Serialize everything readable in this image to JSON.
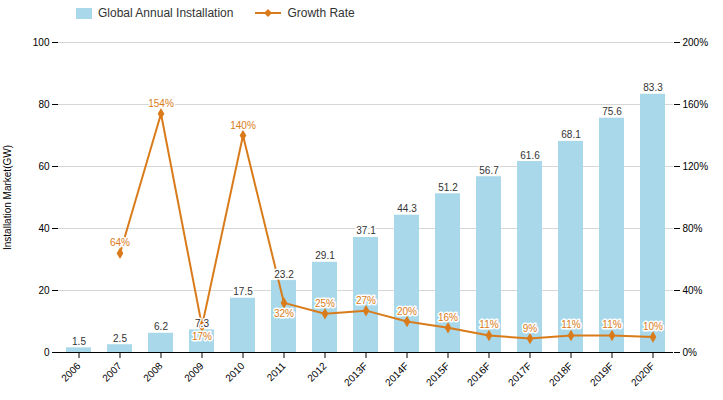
{
  "chart_data": {
    "type": "bar",
    "categories": [
      "2006",
      "2007",
      "2008",
      "2009",
      "2010",
      "2011",
      "2012",
      "2013F",
      "2014F",
      "2015F",
      "2016F",
      "2017F",
      "2018F",
      "2019F",
      "2020F"
    ],
    "ylabel": "Installation Market(GW)",
    "ylim": [
      0,
      100
    ],
    "yticks": [
      0,
      20,
      40,
      60,
      80,
      100
    ],
    "y2lim": [
      0,
      200
    ],
    "y2ticks": [
      {
        "value": 0,
        "label": "0%"
      },
      {
        "value": 40,
        "label": "40%"
      },
      {
        "value": 80,
        "label": "80%"
      },
      {
        "value": 120,
        "label": "120%"
      },
      {
        "value": 160,
        "label": "160%"
      },
      {
        "value": 200,
        "label": "200%"
      }
    ],
    "grid": true,
    "legend": "top",
    "series": [
      {
        "name": "Global Annual Installation",
        "type": "bar",
        "color": "#a8d8ea",
        "data_labels": true,
        "values": [
          1.5,
          2.5,
          6.2,
          7.3,
          17.5,
          23.2,
          29.1,
          37.1,
          44.3,
          51.2,
          56.7,
          61.6,
          68.1,
          75.6,
          83.3
        ]
      },
      {
        "name": "Growth Rate",
        "type": "line",
        "axis": "y2",
        "color": "#d97b1a",
        "marker": "diamond",
        "data_labels": true,
        "values": [
          null,
          64,
          154,
          17,
          140,
          32,
          25,
          27,
          20,
          16,
          11,
          9,
          11,
          11,
          10
        ],
        "value_labels": [
          null,
          "64%",
          "154%",
          "17%",
          "140%",
          "32%",
          "25%",
          "27%",
          "20%",
          "16%",
          "11%",
          "9%",
          "11%",
          "11%",
          "10%"
        ]
      }
    ]
  }
}
